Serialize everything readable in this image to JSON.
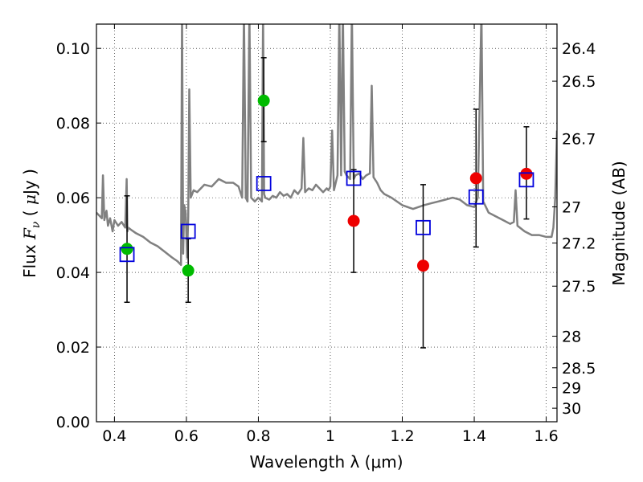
{
  "chart_data": {
    "type": "scatter",
    "title": "",
    "xlabel": "Wavelength  λ (μm)",
    "ylabel": "Flux  F_ν  ( μJy )",
    "ylabel_parts": [
      "Flux ",
      "F",
      "ν",
      "  ( ",
      "μ",
      "Jy )"
    ],
    "y2label": "Magnitude (AB)",
    "xlim": [
      0.35,
      1.63
    ],
    "ylim": [
      0.0,
      0.1065
    ],
    "grid": true,
    "xticks": [
      0.4,
      0.6,
      0.8,
      1.0,
      1.2,
      1.4,
      1.6
    ],
    "xtick_labels": [
      "0.4",
      "0.6",
      "0.8",
      "1",
      "1.2",
      "1.4",
      "1.6"
    ],
    "yticks": [
      0.0,
      0.02,
      0.04,
      0.06,
      0.08,
      0.1
    ],
    "ytick_labels": [
      "0.00",
      "0.02",
      "0.04",
      "0.06",
      "0.08",
      "0.10"
    ],
    "y2_ticks": [
      {
        "label": "26.4",
        "mag": 26.4
      },
      {
        "label": "26.5",
        "mag": 26.5
      },
      {
        "label": "26.7",
        "mag": 26.7
      },
      {
        "label": "27",
        "mag": 27.0
      },
      {
        "label": "27.2",
        "mag": 27.2
      },
      {
        "label": "27.5",
        "mag": 27.5
      },
      {
        "label": "28",
        "mag": 28.0
      },
      {
        "label": "28.5",
        "mag": 28.5
      },
      {
        "label": "29",
        "mag": 29.0
      },
      {
        "label": "30",
        "mag": 30.0
      }
    ],
    "series": [
      {
        "name": "green photometry",
        "marker": "circle",
        "color": "#00bb00",
        "x": [
          0.435,
          0.605,
          0.815
        ],
        "y": [
          0.0463,
          0.0405,
          0.086
        ],
        "yerr_low": [
          0.032,
          0.032,
          0.075
        ],
        "yerr_high": [
          0.0605,
          0.049,
          0.0975
        ]
      },
      {
        "name": "red photometry",
        "marker": "circle",
        "color": "#ee0000",
        "x": [
          1.065,
          1.258,
          1.405,
          1.545
        ],
        "y": [
          0.0538,
          0.0418,
          0.0652,
          0.0664
        ],
        "yerr_low": [
          0.04,
          0.0198,
          0.0468,
          0.0543
        ],
        "yerr_high": [
          0.0675,
          0.0635,
          0.0837,
          0.079
        ]
      },
      {
        "name": "model photometry",
        "marker": "square",
        "color": "#0000dd",
        "x": [
          0.435,
          0.605,
          0.815,
          1.065,
          1.258,
          1.405,
          1.545
        ],
        "y": [
          0.0448,
          0.051,
          0.0638,
          0.0652,
          0.052,
          0.0602,
          0.0648
        ]
      }
    ],
    "model_spectrum": {
      "name": "model SED",
      "color": "#808080",
      "x": [
        0.35,
        0.365,
        0.368,
        0.372,
        0.378,
        0.382,
        0.388,
        0.395,
        0.4,
        0.41,
        0.42,
        0.43,
        0.434,
        0.436,
        0.438,
        0.445,
        0.46,
        0.48,
        0.5,
        0.52,
        0.54,
        0.56,
        0.575,
        0.585,
        0.588,
        0.591,
        0.594,
        0.598,
        0.602,
        0.605,
        0.608,
        0.612,
        0.616,
        0.62,
        0.63,
        0.65,
        0.67,
        0.69,
        0.71,
        0.73,
        0.745,
        0.755,
        0.76,
        0.765,
        0.77,
        0.775,
        0.78,
        0.79,
        0.8,
        0.81,
        0.813,
        0.816,
        0.819,
        0.83,
        0.84,
        0.85,
        0.86,
        0.87,
        0.88,
        0.89,
        0.9,
        0.91,
        0.92,
        0.925,
        0.93,
        0.94,
        0.95,
        0.96,
        0.97,
        0.98,
        0.99,
        0.995,
        1.0,
        1.005,
        1.01,
        1.02,
        1.025,
        1.03,
        1.035,
        1.04,
        1.045,
        1.055,
        1.06,
        1.065,
        1.07,
        1.08,
        1.09,
        1.1,
        1.11,
        1.115,
        1.12,
        1.13,
        1.14,
        1.15,
        1.17,
        1.2,
        1.23,
        1.26,
        1.28,
        1.3,
        1.32,
        1.34,
        1.36,
        1.38,
        1.4,
        1.41,
        1.42,
        1.425,
        1.43,
        1.44,
        1.46,
        1.48,
        1.5,
        1.51,
        1.515,
        1.52,
        1.54,
        1.56,
        1.58,
        1.6,
        1.615,
        1.62,
        1.625,
        1.63
      ],
      "y": [
        0.056,
        0.0545,
        0.066,
        0.054,
        0.0565,
        0.0525,
        0.0545,
        0.051,
        0.054,
        0.0525,
        0.0535,
        0.052,
        0.065,
        0.051,
        0.052,
        0.0515,
        0.0505,
        0.0495,
        0.048,
        0.047,
        0.0455,
        0.044,
        0.043,
        0.042,
        0.11,
        0.045,
        0.058,
        0.056,
        0.044,
        0.055,
        0.089,
        0.06,
        0.061,
        0.062,
        0.0615,
        0.0635,
        0.063,
        0.065,
        0.064,
        0.064,
        0.063,
        0.06,
        0.11,
        0.06,
        0.059,
        0.11,
        0.06,
        0.059,
        0.06,
        0.059,
        0.11,
        0.061,
        0.06,
        0.0595,
        0.0605,
        0.06,
        0.0615,
        0.0605,
        0.061,
        0.06,
        0.062,
        0.061,
        0.0625,
        0.076,
        0.0615,
        0.0625,
        0.062,
        0.0635,
        0.0625,
        0.0615,
        0.0625,
        0.062,
        0.063,
        0.078,
        0.062,
        0.066,
        0.11,
        0.066,
        0.11,
        0.067,
        0.066,
        0.065,
        0.11,
        0.065,
        0.066,
        0.0665,
        0.065,
        0.066,
        0.0665,
        0.09,
        0.0655,
        0.064,
        0.062,
        0.061,
        0.06,
        0.058,
        0.057,
        0.058,
        0.0585,
        0.059,
        0.0595,
        0.06,
        0.0595,
        0.058,
        0.0575,
        0.06,
        0.11,
        0.059,
        0.058,
        0.056,
        0.055,
        0.054,
        0.053,
        0.0535,
        0.062,
        0.0525,
        0.051,
        0.05,
        0.05,
        0.0495,
        0.0495,
        0.052,
        0.06,
        0.078
      ]
    }
  }
}
